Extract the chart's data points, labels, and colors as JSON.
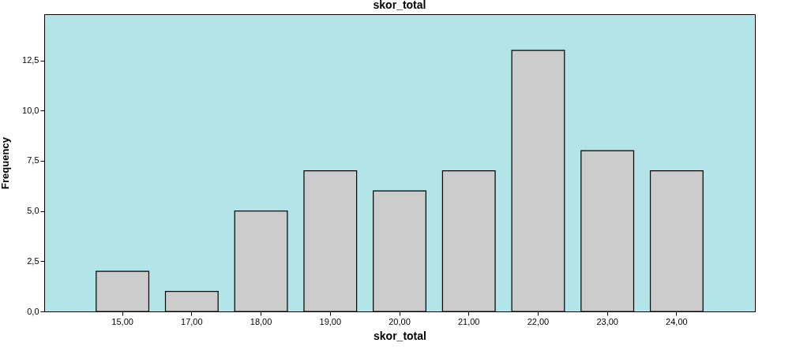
{
  "chart_data": {
    "type": "bar",
    "title": "skor_total",
    "xlabel": "skor_total",
    "ylabel": "Frequency",
    "categories": [
      "15,00",
      "17,00",
      "18,00",
      "19,00",
      "20,00",
      "21,00",
      "22,00",
      "23,00",
      "24,00"
    ],
    "values": [
      2,
      1,
      5,
      7,
      6,
      7,
      13,
      8,
      7
    ],
    "color": "#cccccc",
    "ylim": [
      0,
      14.8
    ],
    "yticks": [
      {
        "value": 0,
        "label": "0,0"
      },
      {
        "value": 2.5,
        "label": "2,5"
      },
      {
        "value": 5,
        "label": "5,0"
      },
      {
        "value": 7.5,
        "label": "7,5"
      },
      {
        "value": 10,
        "label": "10,0"
      },
      {
        "value": 12.5,
        "label": "12,5"
      }
    ]
  }
}
